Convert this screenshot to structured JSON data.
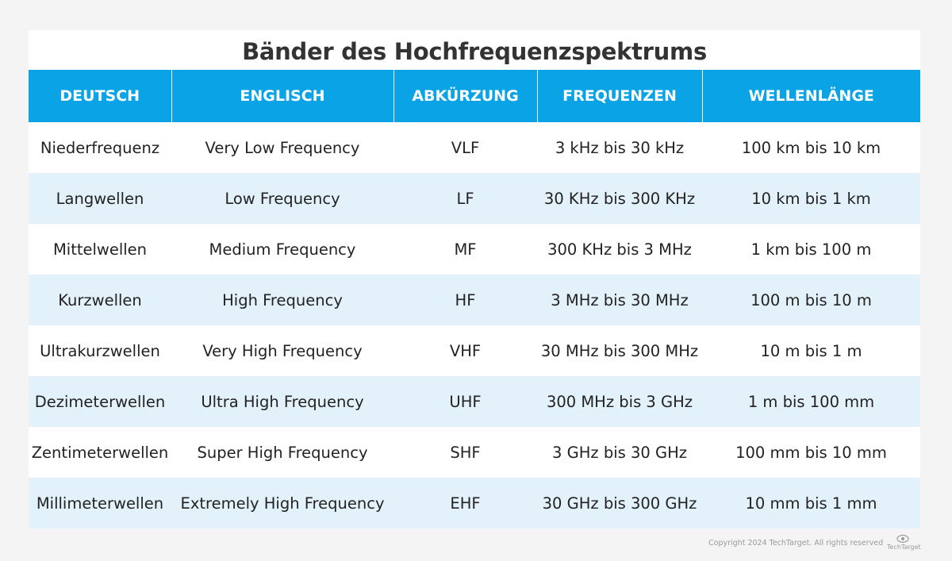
{
  "title": "Bänder des Hochfrequenzspektrums",
  "headers": [
    "DEUTSCH",
    "ENGLISCH",
    "ABKÜRZUNG",
    "FREQUENZEN",
    "WELLENLÄNGE"
  ],
  "rows": [
    [
      "Niederfrequenz",
      "Very Low Frequency",
      "VLF",
      "3 kHz bis 30 kHz",
      "100 km bis 10 km"
    ],
    [
      "Langwellen",
      "Low Frequency",
      "LF",
      "30 KHz bis 300 KHz",
      "10 km bis 1 km"
    ],
    [
      "Mittelwellen",
      "Medium Frequency",
      "MF",
      "300 KHz bis 3 MHz",
      "1 km bis 100 m"
    ],
    [
      "Kurzwellen",
      "High Frequency",
      "HF",
      "3 MHz bis 30 MHz",
      "100 m bis 10 m"
    ],
    [
      "Ultrakurzwellen",
      "Very High Frequency",
      "VHF",
      "30 MHz bis 300 MHz",
      "10 m bis 1 m"
    ],
    [
      "Dezimeterwellen",
      "Ultra High Frequency",
      "UHF",
      "300 MHz bis 3 GHz",
      "1 m bis 100 mm"
    ],
    [
      "Zentimeterwellen",
      "Super High Frequency",
      "SHF",
      "3 GHz bis 30 GHz",
      "100 mm bis 10 mm"
    ],
    [
      "Millimeterwellen",
      "Extremely High Frequency",
      "EHF",
      "30 GHz bis 300 GHz",
      "10 mm bis 1 mm"
    ]
  ],
  "footer": {
    "copyright": "Copyright 2024 TechTarget. All rights reserved",
    "logo_text": "TechTarget"
  },
  "colors": {
    "header_bg": "#0aa4e6",
    "row_alt_bg": "#e3f1fb",
    "title_color": "#333333"
  },
  "icons": {
    "logo": "techtarget-logo-icon"
  }
}
